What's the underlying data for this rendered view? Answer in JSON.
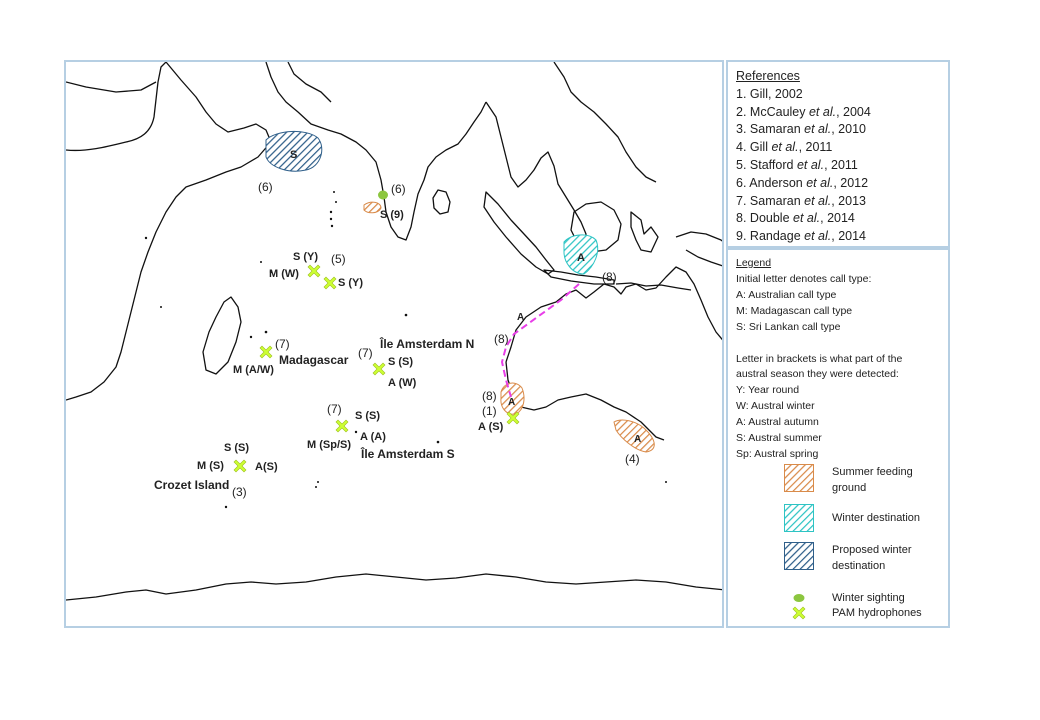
{
  "references": {
    "title": "References",
    "items": [
      {
        "num": "1.",
        "pre": "Gill, 2002",
        "ital": "",
        "post": ""
      },
      {
        "num": "2.",
        "pre": "McCauley ",
        "ital": "et al.",
        "post": ", 2004"
      },
      {
        "num": "3.",
        "pre": "Samaran ",
        "ital": "et al.",
        "post": ", 2010"
      },
      {
        "num": "4.",
        "pre": "Gill ",
        "ital": "et al.",
        "post": ", 2011"
      },
      {
        "num": "5.",
        "pre": "Stafford ",
        "ital": "et al.",
        "post": ", 2011"
      },
      {
        "num": "6.",
        "pre": "Anderson ",
        "ital": "et al.",
        "post": ", 2012"
      },
      {
        "num": "7.",
        "pre": "Samaran ",
        "ital": "et al.",
        "post": ", 2013"
      },
      {
        "num": "8.",
        "pre": "Double ",
        "ital": "et al.",
        "post": ", 2014"
      },
      {
        "num": "9.",
        "pre": "Randage ",
        "ital": "et al.",
        "post": ", 2014"
      }
    ]
  },
  "legend": {
    "title": "Legend",
    "lines": [
      "Initial letter denotes call type:",
      "A: Australian call type",
      "M: Madagascan call type",
      "S: Sri Lankan call type"
    ],
    "lines2": [
      "Letter in brackets is what part of the",
      "austral season they were detected:",
      "Y: Year round",
      "W: Austral winter",
      "A: Austral autumn",
      "S: Austral summer",
      "Sp: Austral spring"
    ],
    "keys": {
      "summer": "Summer feeding ground",
      "winter": "Winter destination",
      "proposed": "Proposed winter destination",
      "sighting": "Winter sighting",
      "pam": "PAM hydrophones"
    },
    "colors": {
      "summer": "#d98b4a",
      "winter": "#2ec4c4",
      "proposed": "#2f5f8a",
      "sighting": "#8cc63f",
      "pam": "#ccff33",
      "route": "#e83ee8"
    }
  },
  "map": {
    "labels": {
      "arabian_region": "S",
      "ref_6_arabian": "(6)",
      "ref_6_srilanka": "(6)",
      "srilanka_summer": "S (9)",
      "indo_region": "A",
      "ref_8_indo": "(8)",
      "route_a": "A",
      "ref_8_route": "(8)",
      "ref_8_perth": "(8)",
      "ref_1_perth": "(1)",
      "perth_region": "A",
      "perth_pam": "A (S)",
      "se_aus_region": "A",
      "ref_4": "(4)",
      "diego_sy1": "S (Y)",
      "diego_ref5": "(5)",
      "diego_mw": "M (W)",
      "diego_sy2": "S (Y)",
      "mad_ref7": "(7)",
      "mad_name": "Madagascar",
      "mad_maw": "M (A/W)",
      "amsn_name": "Île Amsterdam N",
      "amsn_ref7": "(7)",
      "amsn_ss": "S (S)",
      "amsn_aw": "A (W)",
      "amss_ref7": "(7)",
      "amss_ss": "S (S)",
      "amss_aa": "A (A)",
      "amss_msps": "M (Sp/S)",
      "amss_name": "Île Amsterdam S",
      "crozet_ss": "S (S)",
      "crozet_ms": "M (S)",
      "crozet_as": "A(S)",
      "crozet_name": "Crozet Island",
      "crozet_ref3": "(3)"
    }
  }
}
